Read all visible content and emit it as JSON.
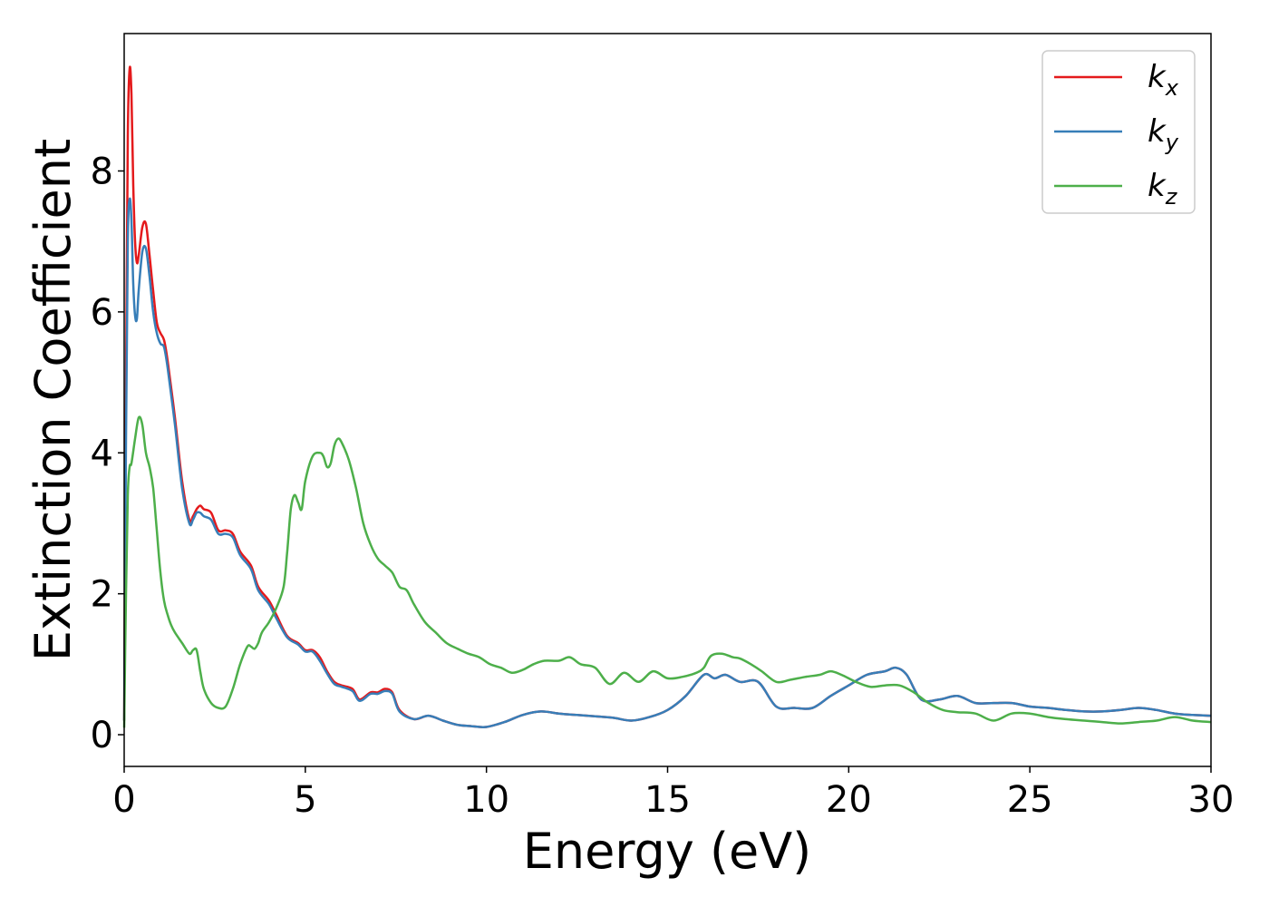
{
  "chart_data": {
    "type": "line",
    "xlabel": "Energy (eV)",
    "ylabel": "Extinction Coefficient",
    "xlim": [
      0,
      30
    ],
    "ylim": [
      -0.45,
      9.95
    ],
    "xticks": [
      0,
      5,
      10,
      15,
      20,
      25,
      30
    ],
    "yticks": [
      0,
      2,
      4,
      6,
      8
    ],
    "grid": false,
    "legend_position": "top-right",
    "series": [
      {
        "name": "k_x",
        "label_main": "k",
        "label_sub": "x",
        "color": "#e41a1c",
        "x": [
          0,
          0.05,
          0.1,
          0.15,
          0.2,
          0.25,
          0.3,
          0.35,
          0.4,
          0.5,
          0.6,
          0.7,
          0.8,
          0.9,
          1.0,
          1.1,
          1.2,
          1.4,
          1.6,
          1.8,
          1.9,
          2.0,
          2.1,
          2.2,
          2.4,
          2.6,
          2.8,
          3.0,
          3.2,
          3.5,
          3.7,
          4.0,
          4.2,
          4.5,
          4.8,
          5.0,
          5.2,
          5.4,
          5.6,
          5.8,
          6.0,
          6.3,
          6.5,
          6.8,
          7.0,
          7.2,
          7.4,
          7.6,
          8.0,
          8.4,
          8.8,
          9.2,
          9.6,
          10.0,
          10.5,
          11.0,
          11.5,
          12.0,
          12.5,
          13.0,
          13.5,
          14.0,
          14.5,
          15.0,
          15.5,
          16.0,
          16.3,
          16.6,
          17.0,
          17.5,
          18.0,
          18.5,
          19.0,
          19.5,
          20.0,
          20.5,
          21.0,
          21.3,
          21.6,
          22.0,
          22.5,
          23.0,
          23.5,
          24.0,
          24.5,
          25.0,
          25.5,
          26.0,
          26.5,
          27.0,
          27.5,
          28.0,
          28.5,
          29.0,
          29.5,
          30.0
        ],
        "y": [
          0.2,
          5.0,
          8.5,
          9.45,
          9.1,
          7.8,
          7.0,
          6.7,
          6.8,
          7.2,
          7.25,
          6.8,
          6.3,
          5.85,
          5.7,
          5.6,
          5.3,
          4.5,
          3.6,
          3.05,
          3.1,
          3.2,
          3.25,
          3.2,
          3.15,
          2.9,
          2.9,
          2.85,
          2.6,
          2.4,
          2.1,
          1.9,
          1.7,
          1.4,
          1.3,
          1.2,
          1.2,
          1.1,
          0.9,
          0.75,
          0.7,
          0.65,
          0.5,
          0.6,
          0.6,
          0.65,
          0.6,
          0.35,
          0.22,
          0.27,
          0.2,
          0.14,
          0.12,
          0.11,
          0.18,
          0.28,
          0.33,
          0.3,
          0.28,
          0.26,
          0.24,
          0.2,
          0.25,
          0.35,
          0.55,
          0.85,
          0.8,
          0.85,
          0.75,
          0.75,
          0.4,
          0.38,
          0.38,
          0.55,
          0.7,
          0.85,
          0.9,
          0.95,
          0.85,
          0.5,
          0.5,
          0.55,
          0.45,
          0.45,
          0.45,
          0.4,
          0.38,
          0.35,
          0.33,
          0.33,
          0.35,
          0.38,
          0.35,
          0.3,
          0.28,
          0.27
        ]
      },
      {
        "name": "k_y",
        "label_main": "k",
        "label_sub": "y",
        "color": "#377eb8",
        "x": [
          0,
          0.05,
          0.1,
          0.15,
          0.2,
          0.25,
          0.3,
          0.35,
          0.4,
          0.5,
          0.6,
          0.7,
          0.8,
          0.9,
          1.0,
          1.1,
          1.2,
          1.4,
          1.6,
          1.8,
          1.9,
          2.0,
          2.1,
          2.2,
          2.4,
          2.6,
          2.8,
          3.0,
          3.2,
          3.5,
          3.7,
          4.0,
          4.2,
          4.5,
          4.8,
          5.0,
          5.2,
          5.4,
          5.6,
          5.8,
          6.0,
          6.3,
          6.5,
          6.8,
          7.0,
          7.2,
          7.4,
          7.6,
          8.0,
          8.4,
          8.8,
          9.2,
          9.6,
          10.0,
          10.5,
          11.0,
          11.5,
          12.0,
          12.5,
          13.0,
          13.5,
          14.0,
          14.5,
          15.0,
          15.5,
          16.0,
          16.3,
          16.6,
          17.0,
          17.5,
          18.0,
          18.5,
          19.0,
          19.5,
          20.0,
          20.5,
          21.0,
          21.3,
          21.6,
          22.0,
          22.5,
          23.0,
          23.5,
          24.0,
          24.5,
          25.0,
          25.5,
          26.0,
          26.5,
          27.0,
          27.5,
          28.0,
          28.5,
          29.0,
          29.5,
          30.0
        ],
        "y": [
          0.2,
          4.2,
          7.0,
          7.6,
          7.3,
          6.4,
          5.95,
          5.9,
          6.3,
          6.85,
          6.9,
          6.5,
          6.0,
          5.7,
          5.55,
          5.5,
          5.2,
          4.4,
          3.5,
          3.0,
          3.05,
          3.15,
          3.15,
          3.1,
          3.05,
          2.85,
          2.85,
          2.8,
          2.55,
          2.35,
          2.05,
          1.85,
          1.65,
          1.38,
          1.28,
          1.18,
          1.18,
          1.05,
          0.87,
          0.72,
          0.68,
          0.62,
          0.48,
          0.58,
          0.58,
          0.62,
          0.58,
          0.33,
          0.22,
          0.27,
          0.2,
          0.14,
          0.12,
          0.11,
          0.18,
          0.28,
          0.33,
          0.3,
          0.28,
          0.26,
          0.24,
          0.2,
          0.25,
          0.35,
          0.55,
          0.85,
          0.8,
          0.85,
          0.75,
          0.75,
          0.4,
          0.38,
          0.38,
          0.55,
          0.7,
          0.85,
          0.9,
          0.95,
          0.85,
          0.5,
          0.5,
          0.55,
          0.45,
          0.45,
          0.45,
          0.4,
          0.38,
          0.35,
          0.33,
          0.33,
          0.35,
          0.38,
          0.35,
          0.3,
          0.28,
          0.27
        ]
      },
      {
        "name": "k_z",
        "label_main": "k",
        "label_sub": "z",
        "color": "#4daf4a",
        "x": [
          0,
          0.05,
          0.1,
          0.15,
          0.2,
          0.3,
          0.4,
          0.5,
          0.6,
          0.7,
          0.8,
          0.9,
          1.0,
          1.1,
          1.2,
          1.3,
          1.4,
          1.6,
          1.8,
          1.9,
          2.0,
          2.1,
          2.2,
          2.4,
          2.6,
          2.8,
          3.0,
          3.2,
          3.4,
          3.5,
          3.6,
          3.7,
          3.8,
          4.0,
          4.2,
          4.4,
          4.5,
          4.6,
          4.7,
          4.8,
          4.9,
          5.0,
          5.2,
          5.4,
          5.5,
          5.6,
          5.7,
          5.8,
          5.9,
          6.0,
          6.2,
          6.4,
          6.6,
          6.8,
          7.0,
          7.2,
          7.4,
          7.6,
          7.8,
          8.0,
          8.3,
          8.6,
          8.9,
          9.2,
          9.5,
          9.8,
          10.1,
          10.4,
          10.7,
          11.0,
          11.3,
          11.6,
          12.0,
          12.3,
          12.6,
          13.0,
          13.4,
          13.8,
          14.2,
          14.6,
          15.0,
          15.4,
          15.8,
          16.0,
          16.2,
          16.5,
          16.8,
          17.0,
          17.3,
          17.6,
          18.0,
          18.4,
          18.8,
          19.2,
          19.5,
          19.8,
          20.2,
          20.6,
          21.0,
          21.4,
          21.8,
          22.2,
          22.6,
          23.0,
          23.5,
          24.0,
          24.5,
          25.0,
          25.5,
          26.0,
          26.5,
          27.0,
          27.5,
          28.0,
          28.5,
          29.0,
          29.5,
          30.0
        ],
        "y": [
          0.1,
          2.0,
          3.4,
          3.8,
          3.85,
          4.2,
          4.5,
          4.4,
          4.0,
          3.8,
          3.5,
          2.9,
          2.3,
          1.9,
          1.7,
          1.55,
          1.45,
          1.3,
          1.15,
          1.2,
          1.2,
          0.9,
          0.65,
          0.45,
          0.38,
          0.4,
          0.65,
          1.0,
          1.25,
          1.25,
          1.22,
          1.3,
          1.45,
          1.6,
          1.8,
          2.1,
          2.6,
          3.2,
          3.4,
          3.3,
          3.2,
          3.6,
          3.95,
          4.0,
          3.95,
          3.8,
          3.85,
          4.1,
          4.2,
          4.15,
          3.9,
          3.5,
          3.0,
          2.7,
          2.5,
          2.4,
          2.3,
          2.1,
          2.05,
          1.85,
          1.6,
          1.45,
          1.3,
          1.22,
          1.15,
          1.1,
          1.0,
          0.95,
          0.88,
          0.92,
          1.0,
          1.05,
          1.05,
          1.1,
          1.0,
          0.95,
          0.72,
          0.88,
          0.75,
          0.9,
          0.8,
          0.82,
          0.88,
          0.95,
          1.12,
          1.15,
          1.1,
          1.08,
          1.0,
          0.9,
          0.75,
          0.78,
          0.82,
          0.85,
          0.9,
          0.85,
          0.75,
          0.68,
          0.7,
          0.7,
          0.6,
          0.45,
          0.35,
          0.32,
          0.3,
          0.2,
          0.3,
          0.3,
          0.25,
          0.22,
          0.2,
          0.18,
          0.16,
          0.18,
          0.2,
          0.25,
          0.2,
          0.18
        ]
      }
    ]
  }
}
